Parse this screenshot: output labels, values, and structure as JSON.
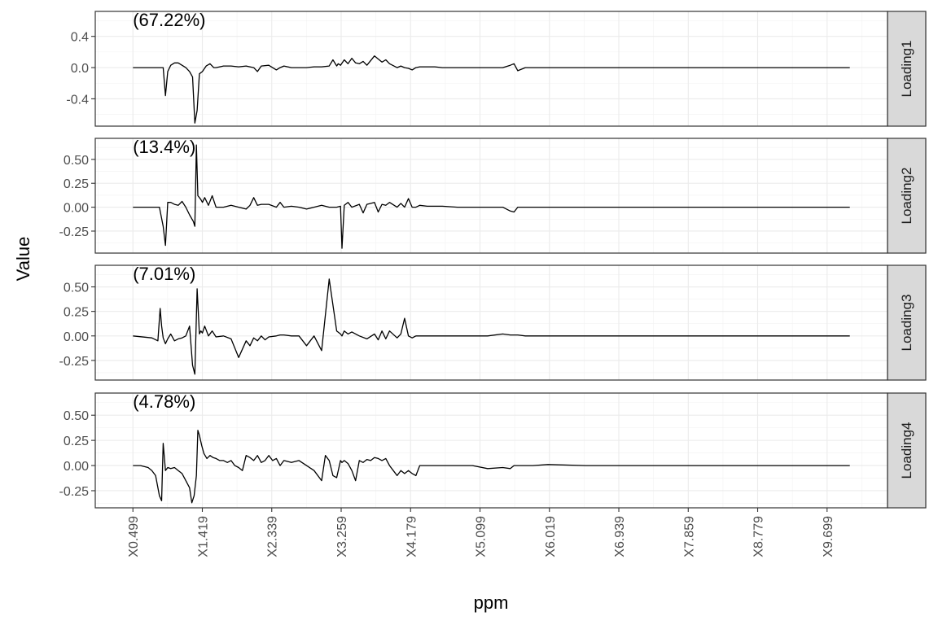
{
  "chart_data": {
    "type": "line",
    "xlabel": "ppm",
    "ylabel": "Value",
    "x_tick_labels": [
      "X0.499",
      "X1.419",
      "X2.339",
      "X3.259",
      "X4.179",
      "X5.099",
      "X6.019",
      "X6.939",
      "X7.859",
      "X8.779",
      "X9.699"
    ],
    "x_tick_values": [
      0.499,
      1.419,
      2.339,
      3.259,
      4.179,
      5.099,
      6.019,
      6.939,
      7.859,
      8.779,
      9.699
    ],
    "xlim": [
      0.0,
      10.5
    ],
    "grid": true,
    "facets": [
      {
        "strip": "Loading1",
        "annotation": "(67.22%)",
        "ylim": [
          -0.75,
          0.72
        ],
        "y_ticks": [
          0.4,
          0.0,
          -0.4
        ],
        "y_tick_labels": [
          "0.4",
          "0.0",
          "-0.4"
        ],
        "series": [
          {
            "x": [
              0.5,
              0.9,
              0.93,
              0.96,
              1.0,
              1.05,
              1.1,
              1.2,
              1.25,
              1.29,
              1.32,
              1.35,
              1.38,
              1.42,
              1.47,
              1.52,
              1.57,
              1.6,
              1.7,
              1.8,
              1.9,
              2.0,
              2.1,
              2.15,
              2.2,
              2.3,
              2.4,
              2.45,
              2.5,
              2.6,
              2.7,
              2.8,
              2.9,
              3.0,
              3.1,
              3.15,
              3.2,
              3.22,
              3.25,
              3.3,
              3.35,
              3.4,
              3.45,
              3.5,
              3.55,
              3.6,
              3.7,
              3.8,
              3.85,
              3.9,
              4.0,
              4.05,
              4.1,
              4.15,
              4.2,
              4.25,
              4.3,
              4.4,
              4.5,
              4.6,
              4.8,
              5.0,
              5.2,
              5.4,
              5.5,
              5.55,
              5.6,
              5.7,
              5.8,
              6.0,
              6.5,
              7.0,
              7.5,
              8.0,
              8.5,
              9.0,
              9.5,
              10.0
            ],
            "y": [
              0.0,
              0.0,
              -0.36,
              -0.05,
              0.03,
              0.06,
              0.06,
              0.0,
              -0.05,
              -0.12,
              -0.71,
              -0.55,
              -0.08,
              -0.05,
              0.02,
              0.05,
              0.0,
              0.0,
              0.02,
              0.02,
              0.01,
              0.02,
              0.0,
              -0.05,
              0.02,
              0.03,
              -0.03,
              0.0,
              0.02,
              0.0,
              0.0,
              0.0,
              0.01,
              0.01,
              0.02,
              0.1,
              0.02,
              0.05,
              0.03,
              0.1,
              0.05,
              0.12,
              0.06,
              0.05,
              0.08,
              0.03,
              0.15,
              0.07,
              0.1,
              0.05,
              0.0,
              0.02,
              0.0,
              -0.01,
              -0.03,
              0.0,
              0.01,
              0.01,
              0.01,
              0.0,
              0.0,
              0.0,
              0.0,
              0.0,
              0.03,
              0.05,
              -0.04,
              0.0,
              0.0,
              0.0,
              0.0,
              0.0,
              0.0,
              0.0,
              0.0,
              0.0,
              0.0,
              0.0
            ]
          }
        ]
      },
      {
        "strip": "Loading2",
        "annotation": "(13.4%)",
        "ylim": [
          -0.48,
          0.72
        ],
        "y_ticks": [
          0.5,
          0.25,
          0.0,
          -0.25
        ],
        "y_tick_labels": [
          "0.50",
          "0.25",
          "0.00",
          "-0.25"
        ],
        "series": [
          {
            "x": [
              0.5,
              0.85,
              0.9,
              0.93,
              0.96,
              1.0,
              1.05,
              1.1,
              1.15,
              1.2,
              1.25,
              1.3,
              1.32,
              1.34,
              1.36,
              1.38,
              1.4,
              1.42,
              1.45,
              1.5,
              1.55,
              1.6,
              1.7,
              1.8,
              1.9,
              2.0,
              2.05,
              2.1,
              2.15,
              2.2,
              2.3,
              2.4,
              2.45,
              2.5,
              2.6,
              2.7,
              2.8,
              2.9,
              3.0,
              3.1,
              3.2,
              3.25,
              3.27,
              3.3,
              3.35,
              3.4,
              3.5,
              3.55,
              3.6,
              3.7,
              3.75,
              3.8,
              3.85,
              3.9,
              4.0,
              4.05,
              4.1,
              4.15,
              4.2,
              4.25,
              4.3,
              4.4,
              4.5,
              4.6,
              4.8,
              5.0,
              5.2,
              5.4,
              5.5,
              5.55,
              5.6,
              5.7,
              5.8,
              6.0,
              6.5,
              7.0,
              7.5,
              8.0,
              8.5,
              9.0,
              9.5,
              10.0
            ],
            "y": [
              0.0,
              0.0,
              -0.2,
              -0.4,
              0.05,
              0.05,
              0.03,
              0.02,
              0.06,
              0.0,
              -0.08,
              -0.15,
              -0.2,
              0.65,
              0.12,
              0.1,
              0.08,
              0.05,
              0.1,
              0.02,
              0.12,
              0.0,
              0.0,
              0.02,
              0.0,
              -0.02,
              0.02,
              0.1,
              0.02,
              0.03,
              0.03,
              0.0,
              0.05,
              0.0,
              0.01,
              0.0,
              -0.02,
              0.0,
              0.02,
              0.0,
              0.0,
              0.01,
              -0.43,
              0.02,
              0.05,
              0.0,
              0.03,
              -0.06,
              0.03,
              0.05,
              -0.05,
              0.03,
              0.02,
              0.05,
              0.0,
              0.04,
              0.0,
              0.09,
              0.0,
              0.0,
              0.02,
              0.01,
              0.01,
              0.01,
              0.0,
              0.0,
              0.0,
              0.0,
              -0.04,
              -0.05,
              0.0,
              0.0,
              0.0,
              0.0,
              0.0,
              0.0,
              0.0,
              0.0,
              0.0,
              0.0,
              0.0,
              0.0
            ]
          }
        ]
      },
      {
        "strip": "Loading3",
        "annotation": "(7.01%)",
        "ylim": [
          -0.45,
          0.72
        ],
        "y_ticks": [
          0.5,
          0.25,
          0.0,
          -0.25
        ],
        "y_tick_labels": [
          "0.50",
          "0.25",
          "0.00",
          "-0.25"
        ],
        "series": [
          {
            "x": [
              0.5,
              0.75,
              0.83,
              0.86,
              0.88,
              0.9,
              0.93,
              0.96,
              1.0,
              1.05,
              1.1,
              1.15,
              1.2,
              1.25,
              1.29,
              1.32,
              1.35,
              1.38,
              1.4,
              1.42,
              1.45,
              1.5,
              1.55,
              1.6,
              1.7,
              1.8,
              1.9,
              2.0,
              2.05,
              2.1,
              2.15,
              2.2,
              2.25,
              2.3,
              2.4,
              2.45,
              2.5,
              2.6,
              2.7,
              2.8,
              2.9,
              3.0,
              3.1,
              3.2,
              3.25,
              3.27,
              3.3,
              3.35,
              3.4,
              3.5,
              3.6,
              3.7,
              3.75,
              3.8,
              3.85,
              3.9,
              4.0,
              4.05,
              4.1,
              4.15,
              4.2,
              4.25,
              4.3,
              4.4,
              4.5,
              4.6,
              4.8,
              5.0,
              5.2,
              5.4,
              5.5,
              5.55,
              5.6,
              5.7,
              5.8,
              6.0,
              6.5,
              7.0,
              7.5,
              8.0,
              8.5,
              9.0,
              9.5,
              10.0
            ],
            "y": [
              0.0,
              -0.02,
              -0.05,
              0.28,
              0.1,
              -0.02,
              -0.08,
              -0.03,
              0.02,
              -0.05,
              -0.03,
              -0.02,
              0.0,
              0.1,
              -0.3,
              -0.39,
              0.48,
              0.02,
              0.05,
              0.03,
              0.1,
              0.0,
              0.05,
              -0.01,
              0.0,
              -0.03,
              -0.22,
              -0.05,
              -0.1,
              -0.02,
              -0.05,
              0.0,
              -0.04,
              -0.01,
              0.0,
              0.01,
              0.01,
              0.0,
              0.0,
              -0.1,
              0.0,
              -0.15,
              0.58,
              0.05,
              0.02,
              0.0,
              0.05,
              0.02,
              0.04,
              0.0,
              -0.03,
              0.02,
              -0.04,
              0.05,
              -0.03,
              0.05,
              -0.02,
              0.02,
              0.18,
              0.0,
              -0.02,
              0.0,
              0.0,
              0.0,
              0.0,
              0.0,
              0.0,
              0.0,
              0.0,
              0.02,
              0.01,
              0.01,
              0.01,
              0.0,
              0.0,
              0.0,
              0.0,
              0.0,
              0.0,
              0.0,
              0.0,
              0.0,
              0.0,
              0.0
            ]
          }
        ]
      },
      {
        "strip": "Loading4",
        "annotation": "(4.78%)",
        "ylim": [
          -0.42,
          0.72
        ],
        "y_ticks": [
          0.5,
          0.25,
          0.0,
          -0.25
        ],
        "y_tick_labels": [
          "0.50",
          "0.25",
          "0.00",
          "-0.25"
        ],
        "series": [
          {
            "x": [
              0.5,
              0.6,
              0.7,
              0.75,
              0.8,
              0.85,
              0.88,
              0.9,
              0.93,
              0.96,
              1.0,
              1.05,
              1.1,
              1.15,
              1.2,
              1.25,
              1.28,
              1.31,
              1.34,
              1.36,
              1.38,
              1.41,
              1.44,
              1.48,
              1.52,
              1.56,
              1.6,
              1.65,
              1.7,
              1.75,
              1.8,
              1.85,
              1.9,
              1.95,
              2.0,
              2.05,
              2.1,
              2.15,
              2.2,
              2.25,
              2.3,
              2.35,
              2.4,
              2.45,
              2.5,
              2.6,
              2.7,
              2.8,
              2.9,
              3.0,
              3.05,
              3.1,
              3.15,
              3.2,
              3.25,
              3.27,
              3.3,
              3.35,
              3.4,
              3.45,
              3.5,
              3.55,
              3.6,
              3.65,
              3.7,
              3.75,
              3.8,
              3.85,
              3.9,
              3.95,
              4.0,
              4.05,
              4.1,
              4.15,
              4.2,
              4.25,
              4.3,
              4.35,
              4.4,
              4.5,
              4.6,
              4.8,
              5.0,
              5.2,
              5.4,
              5.5,
              5.55,
              5.6,
              5.7,
              5.8,
              6.0,
              6.5,
              7.0,
              7.5,
              8.0,
              8.5,
              9.0,
              9.5,
              10.0
            ],
            "y": [
              0.0,
              0.0,
              -0.02,
              -0.05,
              -0.1,
              -0.3,
              -0.35,
              0.22,
              -0.05,
              -0.02,
              -0.03,
              -0.02,
              -0.05,
              -0.08,
              -0.15,
              -0.22,
              -0.37,
              -0.3,
              -0.1,
              0.35,
              0.3,
              0.2,
              0.12,
              0.07,
              0.1,
              0.08,
              0.07,
              0.05,
              0.05,
              0.03,
              0.05,
              0.0,
              -0.02,
              -0.05,
              0.1,
              0.08,
              0.05,
              0.1,
              0.03,
              0.05,
              0.1,
              0.05,
              0.07,
              0.0,
              0.05,
              0.03,
              0.05,
              0.0,
              -0.05,
              -0.15,
              0.1,
              0.05,
              -0.1,
              -0.12,
              0.05,
              0.03,
              0.05,
              0.02,
              -0.05,
              -0.15,
              0.05,
              0.03,
              0.06,
              0.05,
              0.08,
              0.07,
              0.05,
              0.07,
              0.0,
              -0.05,
              -0.1,
              -0.05,
              -0.08,
              -0.05,
              -0.08,
              -0.1,
              0.0,
              0.0,
              0.0,
              0.0,
              0.0,
              0.0,
              0.0,
              -0.03,
              -0.02,
              -0.03,
              0.0,
              0.0,
              0.0,
              0.0,
              0.01,
              0.0,
              0.0,
              0.0,
              0.0,
              0.0,
              0.0,
              0.0,
              0.0
            ]
          }
        ]
      }
    ]
  }
}
